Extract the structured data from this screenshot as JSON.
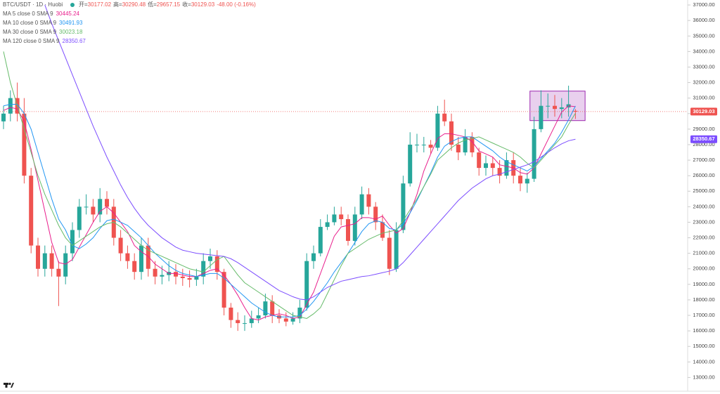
{
  "chart_data": {
    "type": "candlestick",
    "title": "BTC/USDT · 1D · Huobi",
    "ohlc_prefixes": [
      "开=",
      "高=",
      "低=",
      "收="
    ],
    "change": "-48.00 (-0.16%)",
    "up_color": "#26a69a",
    "down_color": "#ef5350",
    "open": [
      29500,
      30000,
      31000,
      30000,
      26000,
      21500,
      20000,
      21000,
      20000,
      19500,
      21000,
      22500,
      24000,
      24000,
      23500,
      24500,
      24000,
      22000,
      21000,
      20500,
      19800,
      21500,
      20000,
      19500,
      19600,
      19800,
      19500,
      19400,
      19300,
      19500,
      20500,
      20800,
      19800,
      17500,
      16700,
      16500,
      16500,
      16800,
      17000,
      17900,
      17000,
      16800,
      16600,
      16800,
      17500,
      20500,
      21000,
      22700,
      23000,
      23500,
      23200,
      21800,
      23500,
      24800,
      24000,
      23000,
      22000,
      20000,
      22500,
      25500,
      28000,
      28000,
      28000,
      27800,
      30000,
      29500,
      28000,
      27500,
      28500,
      27500,
      26500,
      26800,
      26500,
      26000,
      27000,
      26000,
      25500,
      25800,
      29000,
      30500,
      30500,
      30300,
      30400,
      30177.02
    ],
    "high": [
      30500,
      31500,
      32000,
      31000,
      26500,
      22000,
      21500,
      21500,
      20500,
      21500,
      23000,
      24500,
      24800,
      24500,
      25200,
      25000,
      24500,
      22500,
      21500,
      21000,
      22000,
      22000,
      20500,
      20200,
      20500,
      20300,
      20000,
      19900,
      20000,
      21000,
      21300,
      21200,
      20000,
      17800,
      17200,
      17000,
      17300,
      17500,
      18400,
      18300,
      17400,
      17200,
      17200,
      18000,
      21000,
      21500,
      23200,
      23500,
      24000,
      24000,
      23500,
      24000,
      25300,
      25200,
      24300,
      23500,
      22500,
      23000,
      26000,
      28800,
      28700,
      28500,
      28300,
      30500,
      30900,
      30000,
      28500,
      29000,
      28800,
      27800,
      27300,
      27200,
      27000,
      27500,
      27500,
      26500,
      26200,
      29800,
      31500,
      31300,
      31200,
      31000,
      31800,
      30290.48
    ],
    "low": [
      29000,
      29500,
      29500,
      25500,
      21000,
      19500,
      19500,
      19500,
      17600,
      19000,
      20500,
      22000,
      23500,
      23000,
      23000,
      23500,
      21500,
      20500,
      20000,
      19300,
      19300,
      19500,
      19000,
      19000,
      19200,
      19000,
      18900,
      18800,
      18900,
      19000,
      20000,
      19300,
      17000,
      16200,
      16000,
      16000,
      16200,
      16500,
      16800,
      16500,
      16500,
      16300,
      16400,
      16500,
      17300,
      20000,
      20800,
      22500,
      22800,
      22800,
      21500,
      21500,
      23200,
      23500,
      22500,
      21800,
      19600,
      19800,
      22300,
      25300,
      27500,
      27500,
      27400,
      27600,
      29200,
      27600,
      27000,
      27300,
      27200,
      26000,
      26000,
      26000,
      25500,
      25800,
      25500,
      25000,
      24900,
      25600,
      28800,
      29700,
      29800,
      29700,
      29800,
      29657.15
    ],
    "close": [
      30000,
      31000,
      30000,
      26000,
      21500,
      20000,
      21000,
      20000,
      19500,
      21000,
      22500,
      24000,
      24000,
      23500,
      24500,
      24000,
      22000,
      21000,
      20500,
      19800,
      21500,
      20000,
      19500,
      19600,
      19800,
      19500,
      19400,
      19300,
      19500,
      20500,
      20800,
      19800,
      17500,
      16700,
      16500,
      16500,
      16800,
      17000,
      17900,
      17000,
      16800,
      16600,
      16800,
      17500,
      20500,
      21000,
      22700,
      23000,
      23500,
      23200,
      21800,
      23500,
      24800,
      24000,
      23000,
      22000,
      20000,
      22500,
      25500,
      28000,
      28000,
      28000,
      27800,
      30000,
      29500,
      28000,
      27500,
      28500,
      27500,
      26500,
      26800,
      26500,
      26000,
      27000,
      26000,
      25500,
      25800,
      29000,
      30500,
      30500,
      30300,
      30400,
      30600,
      30129.03
    ],
    "series": [
      {
        "name": "MA 5 close 0 SMA 9",
        "color": "#e91e8c",
        "values": [
          30200,
          30400,
          30300,
          29500,
          27700,
          25700,
          23700,
          21700,
          20400,
          20300,
          20600,
          21400,
          22200,
          23000,
          23700,
          24000,
          23600,
          23000,
          22400,
          21500,
          21100,
          20800,
          20300,
          20000,
          19700,
          19700,
          19600,
          19500,
          19500,
          19700,
          19900,
          20000,
          19600,
          19000,
          18300,
          17500,
          16800,
          16700,
          16900,
          17000,
          17100,
          17000,
          16800,
          16900,
          17700,
          18500,
          19700,
          20900,
          22100,
          22700,
          22800,
          22900,
          23300,
          23300,
          23200,
          23400,
          22800,
          22300,
          22600,
          23600,
          24800,
          26300,
          27400,
          28400,
          28700,
          28700,
          28600,
          28500,
          28200,
          27600,
          27400,
          27200,
          26700,
          26600,
          26500,
          26200,
          26100,
          26500,
          27400,
          28300,
          29200,
          30100,
          30500,
          30445.24
        ]
      },
      {
        "name": "MA 10 close 0 SMA 9",
        "color": "#2196f3",
        "values": [
          30500,
          30600,
          30600,
          30000,
          29000,
          27500,
          26000,
          24500,
          23200,
          22500,
          21500,
          21300,
          21600,
          22000,
          22600,
          23100,
          23200,
          23000,
          22800,
          22400,
          22000,
          21500,
          21000,
          20600,
          20200,
          19900,
          19700,
          19600,
          19500,
          19600,
          19700,
          19700,
          19400,
          19000,
          18600,
          18200,
          17800,
          17500,
          17200,
          17000,
          16900,
          16900,
          16900,
          17000,
          17400,
          17900,
          18500,
          19100,
          19800,
          20400,
          21000,
          21700,
          22400,
          22900,
          23100,
          23000,
          22600,
          22500,
          22900,
          23600,
          24400,
          25300,
          26200,
          27200,
          27900,
          28200,
          28400,
          28500,
          28500,
          28200,
          27900,
          27600,
          27200,
          26900,
          26700,
          26500,
          26300,
          26600,
          27100,
          27600,
          28100,
          28800,
          29600,
          30491.93
        ]
      },
      {
        "name": "MA 30 close 0 SMA 9",
        "color": "#66bb6a",
        "values": [
          34000,
          32000,
          30500,
          29000,
          27500,
          26000,
          24800,
          23800,
          22800,
          22000,
          21500,
          21800,
          22100,
          22400,
          22700,
          22900,
          23000,
          22700,
          22300,
          21900,
          21500,
          21200,
          21000,
          20800,
          20600,
          20400,
          20200,
          20000,
          19900,
          19800,
          20200,
          20600,
          20800,
          20200,
          19600,
          19100,
          18800,
          18500,
          18200,
          17900,
          17600,
          17300,
          17000,
          16900,
          16800,
          17100,
          17500,
          18400,
          19300,
          20200,
          21000,
          21300,
          21600,
          21900,
          22100,
          22300,
          22400,
          22500,
          23100,
          23800,
          24500,
          25300,
          26100,
          27000,
          27400,
          27800,
          28100,
          28300,
          28400,
          28500,
          28300,
          28100,
          27900,
          27700,
          27500,
          27200,
          26800,
          26500,
          27000,
          27500,
          28000,
          28500,
          29300,
          30023.18
        ]
      },
      {
        "name": "MA 120 close 0 SMA 9",
        "color": "#7c4dff",
        "values": [
          null,
          null,
          null,
          null,
          null,
          null,
          37000,
          35800,
          34700,
          33600,
          32500,
          31400,
          30300,
          29200,
          28200,
          27200,
          26300,
          25400,
          24600,
          23900,
          23300,
          22800,
          22400,
          22000,
          21700,
          21400,
          21200,
          21100,
          21000,
          20950,
          20900,
          20850,
          20800,
          20650,
          20400,
          20100,
          19800,
          19500,
          19200,
          18900,
          18600,
          18400,
          18200,
          18050,
          18000,
          18200,
          18500,
          18800,
          19000,
          19200,
          19300,
          19400,
          19500,
          19550,
          19650,
          19750,
          19850,
          20000,
          20400,
          20900,
          21400,
          21900,
          22400,
          22900,
          23400,
          23900,
          24400,
          24800,
          25200,
          25500,
          25800,
          26000,
          26100,
          26250,
          26400,
          26550,
          26700,
          26900,
          27200,
          27500,
          27800,
          28050,
          28250,
          28350.67
        ]
      }
    ],
    "box": {
      "top": 31450,
      "bottom": 29550,
      "color": "#9c27b0"
    },
    "ylim": [
      12160,
      37320
    ],
    "yticks": [
      {
        "value": 13000,
        "label": "13000.00"
      },
      {
        "value": 14000,
        "label": "14000.00"
      },
      {
        "value": 15000,
        "label": "15000.00"
      },
      {
        "value": 16000,
        "label": "16000.00"
      },
      {
        "value": 17000,
        "label": "17000.00"
      },
      {
        "value": 18000,
        "label": "18000.00"
      },
      {
        "value": 19000,
        "label": "19000.00"
      },
      {
        "value": 20000,
        "label": "20000.00"
      },
      {
        "value": 21000,
        "label": "21000.00"
      },
      {
        "value": 22000,
        "label": "22000.00"
      },
      {
        "value": 23000,
        "label": "23000.00"
      },
      {
        "value": 24000,
        "label": "24000.00"
      },
      {
        "value": 25000,
        "label": "25000.00"
      },
      {
        "value": 26000,
        "label": "26000.00"
      },
      {
        "value": 27000,
        "label": "27000.00"
      },
      {
        "value": 28000,
        "label": "28000.00"
      },
      {
        "value": 29000,
        "label": "29000.00"
      },
      {
        "value": 30000,
        "label": "30000.00"
      },
      {
        "value": 31000,
        "label": "31000.00"
      },
      {
        "value": 32000,
        "label": "32000.00"
      },
      {
        "value": 33000,
        "label": "33000.00"
      },
      {
        "value": 34000,
        "label": "34000.00"
      },
      {
        "value": 35000,
        "label": "35000.00"
      },
      {
        "value": 36000,
        "label": "36000.00"
      },
      {
        "value": 37000,
        "label": "37000.00"
      }
    ],
    "grid": false
  }
}
